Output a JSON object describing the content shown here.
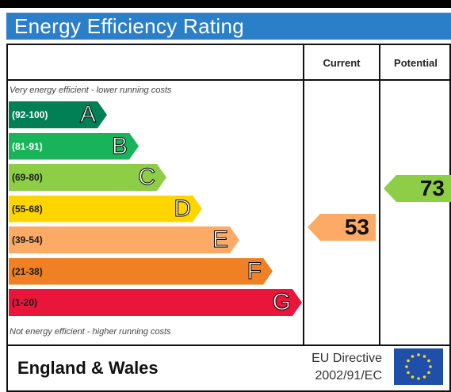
{
  "title": "Energy Efficiency Rating",
  "columns": {
    "current": "Current",
    "potential": "Potential"
  },
  "top_note": "Very energy efficient - lower running costs",
  "bottom_note": "Not energy efficient - higher running costs",
  "footer": {
    "region": "England & Wales",
    "directive_line1": "EU Directive",
    "directive_line2": "2002/91/EC"
  },
  "colors": {
    "title_bar": "#2b7fc9",
    "eu_flag": "#1f4fa8"
  },
  "chart_data": {
    "type": "bar",
    "categories": [
      "A",
      "B",
      "C",
      "D",
      "E",
      "F",
      "G"
    ],
    "bands": [
      {
        "letter": "A",
        "range": "(92-100)",
        "color": "#008054",
        "text_color": "#ffffff"
      },
      {
        "letter": "B",
        "range": "(81-91)",
        "color": "#19b459",
        "text_color": "#ffffff"
      },
      {
        "letter": "C",
        "range": "(69-80)",
        "color": "#8dce46",
        "text_color": "#1a1a1a"
      },
      {
        "letter": "D",
        "range": "(55-68)",
        "color": "#ffd500",
        "text_color": "#1a1a1a"
      },
      {
        "letter": "E",
        "range": "(39-54)",
        "color": "#fcaa65",
        "text_color": "#1a1a1a"
      },
      {
        "letter": "F",
        "range": "(21-38)",
        "color": "#ef8023",
        "text_color": "#1a1a1a"
      },
      {
        "letter": "G",
        "range": "(1-20)",
        "color": "#e9153b",
        "text_color": "#1a1a1a"
      }
    ],
    "current": {
      "value": 53,
      "band": "E",
      "color": "#fcaa65"
    },
    "potential": {
      "value": 73,
      "band": "C",
      "color": "#8dce46"
    }
  }
}
